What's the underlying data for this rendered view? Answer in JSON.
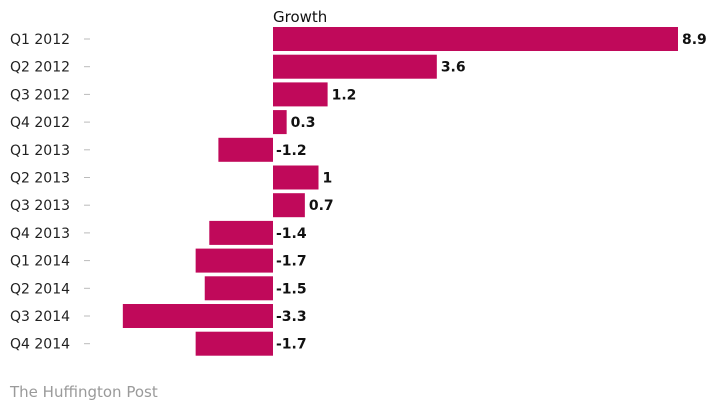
{
  "chart_data": {
    "type": "bar",
    "orientation": "horizontal",
    "title": "Growth",
    "categories": [
      "Q1 2012",
      "Q2 2012",
      "Q3 2012",
      "Q4 2012",
      "Q1 2013",
      "Q2 2013",
      "Q3 2013",
      "Q4 2013",
      "Q1 2014",
      "Q2 2014",
      "Q3 2014",
      "Q4 2014"
    ],
    "values": [
      8.9,
      3.6,
      1.2,
      0.3,
      -1.2,
      1,
      0.7,
      -1.4,
      -1.7,
      -1.5,
      -3.3,
      -1.7
    ],
    "value_labels": [
      "8.9",
      "3.6",
      "1.2",
      "0.3",
      "-1.2",
      "1",
      "0.7",
      "-1.4",
      "-1.7",
      "-1.5",
      "-3.3",
      "-1.7"
    ],
    "xlim": [
      -3.3,
      8.9
    ],
    "bar_color": "#c0095a",
    "grid": false,
    "legend": "none"
  },
  "source": "The Huffington Post"
}
